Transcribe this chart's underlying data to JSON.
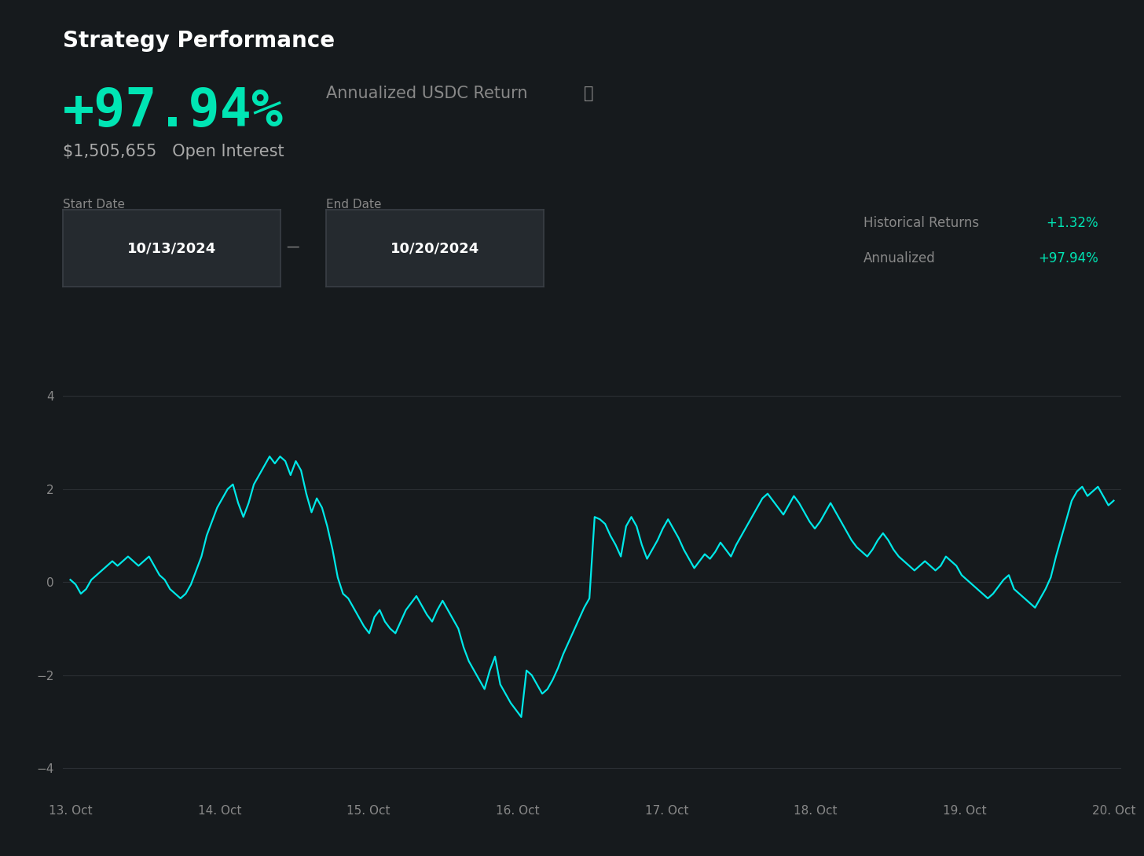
{
  "bg_color": "#161a1d",
  "title": "Strategy Performance",
  "title_color": "#ffffff",
  "title_fontsize": 20,
  "return_value": "+97.94%",
  "return_color": "#00e5b4",
  "return_fontsize": 48,
  "return_label": "Annualized USDC Return",
  "return_label_color": "#888888",
  "return_label_fontsize": 15,
  "open_interest": "$1,505,655",
  "open_interest_label": "Open Interest",
  "open_interest_color": "#aaaaaa",
  "open_interest_fontsize": 15,
  "start_date_label": "Start Date",
  "start_date": "10/13/2024",
  "end_date_label": "End Date",
  "end_date": "10/20/2024",
  "date_label_color": "#888888",
  "date_label_fontsize": 11,
  "date_box_color": "#252a2f",
  "date_text_color": "#ffffff",
  "date_text_fontsize": 13,
  "hist_returns_label": "Historical Returns",
  "hist_returns_value": "+1.32%",
  "annualized_label": "Annualized",
  "annualized_value": "+97.94%",
  "legend_label_color": "#888888",
  "legend_value_color": "#00e5b4",
  "legend_fontsize": 12,
  "line_color": "#00e8e8",
  "line_width": 1.6,
  "yticks": [
    -4,
    -2,
    0,
    2,
    4
  ],
  "ylim": [
    -4.6,
    4.6
  ],
  "grid_color": "#2a2e33",
  "tick_color": "#888888",
  "tick_fontsize": 11,
  "x_labels": [
    "13. Oct",
    "14. Oct",
    "15. Oct",
    "16. Oct",
    "17. Oct",
    "18. Oct",
    "19. Oct",
    "20. Oct"
  ],
  "y_values": [
    0.05,
    -0.05,
    -0.25,
    -0.15,
    0.05,
    0.15,
    0.25,
    0.35,
    0.45,
    0.35,
    0.45,
    0.55,
    0.45,
    0.35,
    0.45,
    0.55,
    0.35,
    0.15,
    0.05,
    -0.15,
    -0.25,
    -0.35,
    -0.25,
    -0.05,
    0.25,
    0.55,
    1.0,
    1.3,
    1.6,
    1.8,
    2.0,
    2.1,
    1.7,
    1.4,
    1.7,
    2.1,
    2.3,
    2.5,
    2.7,
    2.55,
    2.7,
    2.6,
    2.3,
    2.6,
    2.4,
    1.9,
    1.5,
    1.8,
    1.6,
    1.2,
    0.7,
    0.1,
    -0.25,
    -0.35,
    -0.55,
    -0.75,
    -0.95,
    -1.1,
    -0.75,
    -0.6,
    -0.85,
    -1.0,
    -1.1,
    -0.85,
    -0.6,
    -0.45,
    -0.3,
    -0.5,
    -0.7,
    -0.85,
    -0.6,
    -0.4,
    -0.6,
    -0.8,
    -1.0,
    -1.4,
    -1.7,
    -1.9,
    -2.1,
    -2.3,
    -1.9,
    -1.6,
    -2.2,
    -2.4,
    -2.6,
    -2.75,
    -2.9,
    -1.9,
    -2.0,
    -2.2,
    -2.4,
    -2.3,
    -2.1,
    -1.85,
    -1.55,
    -1.3,
    -1.05,
    -0.8,
    -0.55,
    -0.35,
    1.4,
    1.35,
    1.25,
    1.0,
    0.8,
    0.55,
    1.2,
    1.4,
    1.2,
    0.8,
    0.5,
    0.7,
    0.9,
    1.15,
    1.35,
    1.15,
    0.95,
    0.7,
    0.5,
    0.3,
    0.45,
    0.6,
    0.5,
    0.65,
    0.85,
    0.7,
    0.55,
    0.8,
    1.0,
    1.2,
    1.4,
    1.6,
    1.8,
    1.9,
    1.75,
    1.6,
    1.45,
    1.65,
    1.85,
    1.7,
    1.5,
    1.3,
    1.15,
    1.3,
    1.5,
    1.7,
    1.5,
    1.3,
    1.1,
    0.9,
    0.75,
    0.65,
    0.55,
    0.7,
    0.9,
    1.05,
    0.9,
    0.7,
    0.55,
    0.45,
    0.35,
    0.25,
    0.35,
    0.45,
    0.35,
    0.25,
    0.35,
    0.55,
    0.45,
    0.35,
    0.15,
    0.05,
    -0.05,
    -0.15,
    -0.25,
    -0.35,
    -0.25,
    -0.1,
    0.05,
    0.15,
    -0.15,
    -0.25,
    -0.35,
    -0.45,
    -0.55,
    -0.35,
    -0.15,
    0.1,
    0.55,
    0.95,
    1.35,
    1.75,
    1.95,
    2.05,
    1.85,
    1.95,
    2.05,
    1.85,
    1.65,
    1.75
  ]
}
